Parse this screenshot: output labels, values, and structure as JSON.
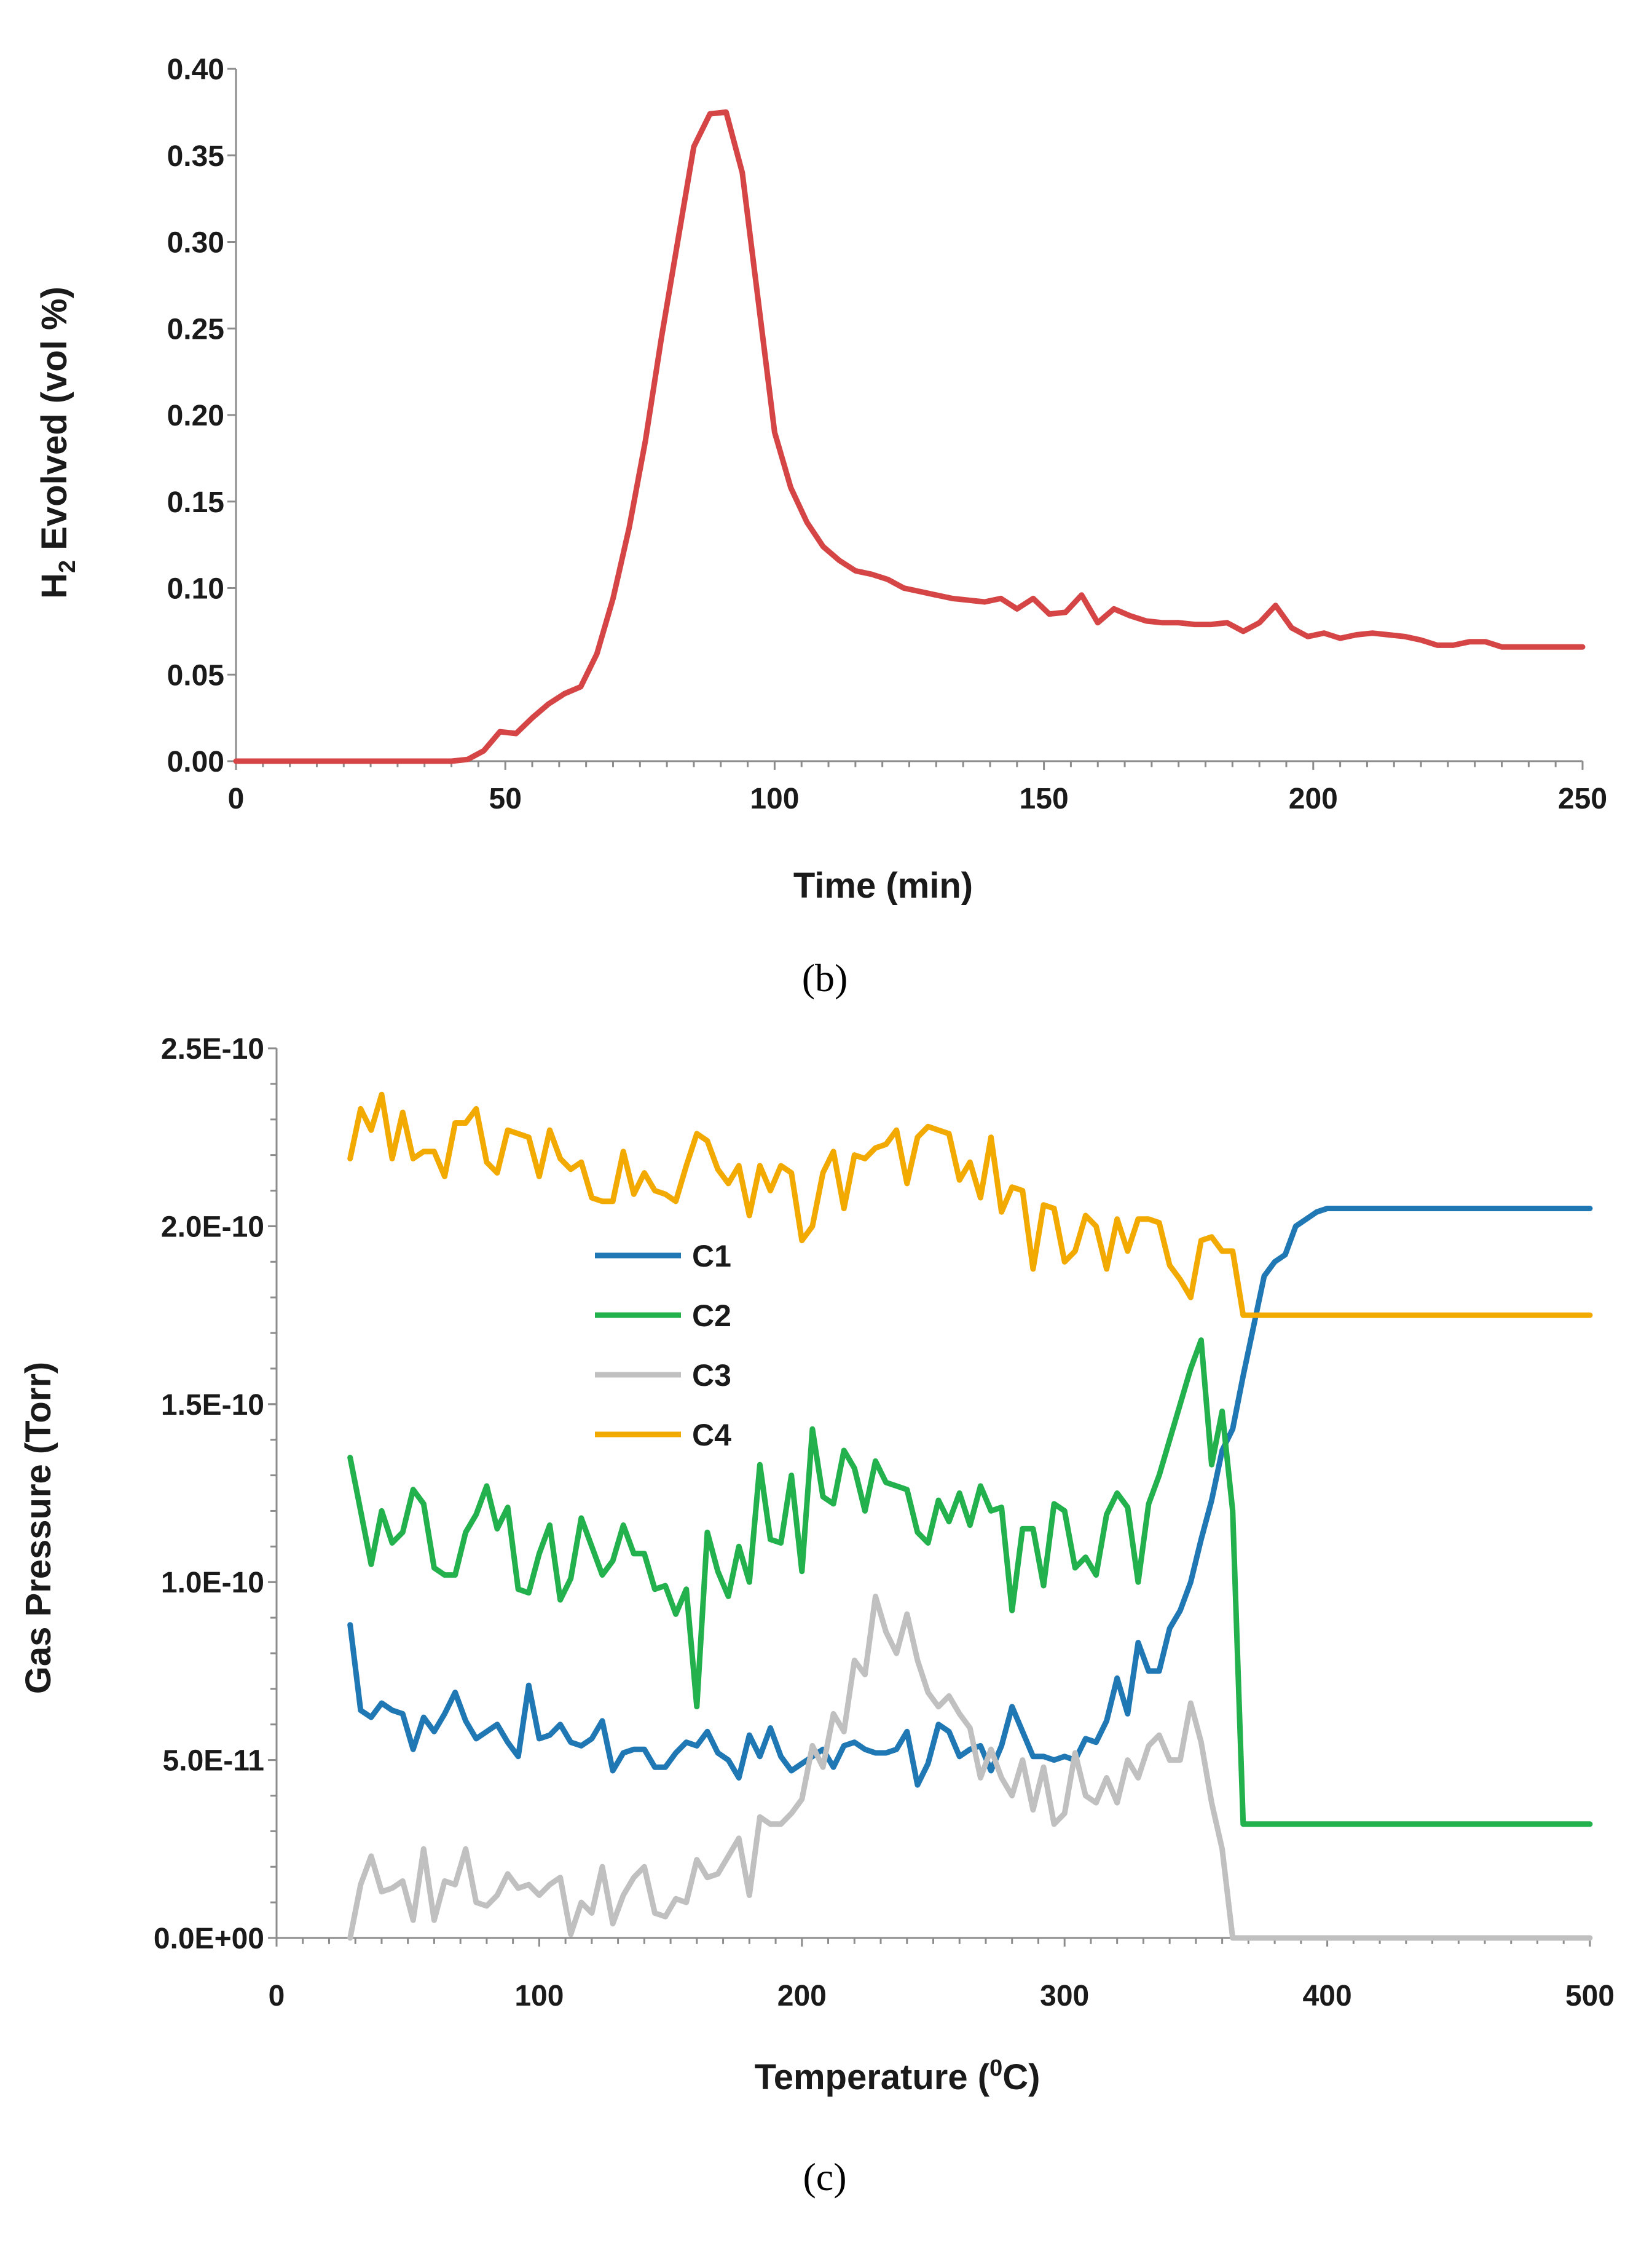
{
  "chart_data": [
    {
      "type": "line",
      "panel_label": "(b)",
      "title": "",
      "xlabel": "Time (min)",
      "ylabel": "H2 Evolved (vol %)",
      "ylabel_main": "H",
      "ylabel_sub": "2",
      "ylabel_rest": " Evolved (vol %)",
      "xlim": [
        0,
        250
      ],
      "ylim": [
        0,
        0.4
      ],
      "x_ticks": [
        "0",
        "50",
        "100",
        "150",
        "200",
        "250"
      ],
      "y_ticks": [
        "0.00",
        "0.05",
        "0.10",
        "0.15",
        "0.20",
        "0.25",
        "0.30",
        "0.35",
        "0.40"
      ],
      "grid": false,
      "legend": "none",
      "series": [
        {
          "name": "H2",
          "color": "#d64545",
          "x": [
            0,
            10,
            20,
            30,
            40,
            43,
            46,
            49,
            52,
            55,
            58,
            61,
            64,
            67,
            70,
            73,
            76,
            79,
            82,
            85,
            88,
            91,
            94,
            97,
            100,
            103,
            106,
            109,
            112,
            115,
            118,
            121,
            124,
            127,
            130,
            133,
            136,
            139,
            142,
            145,
            148,
            151,
            154,
            157,
            160,
            163,
            166,
            169,
            172,
            175,
            178,
            181,
            184,
            187,
            190,
            193,
            196,
            199,
            202,
            205,
            208,
            211,
            214,
            217,
            220,
            223,
            226,
            229,
            232,
            235,
            238,
            241,
            244,
            247,
            250
          ],
          "values": [
            0.0,
            0.0,
            0.0,
            0.0,
            0.0,
            0.001,
            0.006,
            0.017,
            0.016,
            0.025,
            0.033,
            0.039,
            0.043,
            0.062,
            0.094,
            0.135,
            0.185,
            0.245,
            0.3,
            0.355,
            0.374,
            0.375,
            0.34,
            0.265,
            0.19,
            0.158,
            0.138,
            0.124,
            0.116,
            0.11,
            0.108,
            0.105,
            0.1,
            0.098,
            0.096,
            0.094,
            0.093,
            0.092,
            0.094,
            0.088,
            0.094,
            0.085,
            0.086,
            0.096,
            0.08,
            0.088,
            0.084,
            0.081,
            0.08,
            0.08,
            0.079,
            0.079,
            0.08,
            0.075,
            0.08,
            0.09,
            0.077,
            0.072,
            0.074,
            0.071,
            0.073,
            0.074,
            0.073,
            0.072,
            0.07,
            0.067,
            0.067,
            0.069,
            0.069,
            0.066,
            0.066,
            0.066,
            0.066,
            0.066,
            0.066
          ]
        }
      ]
    },
    {
      "type": "line",
      "panel_label": "(c)",
      "title": "",
      "xlabel": "Temperature (0C)",
      "xlabel_main": "Temperature (",
      "xlabel_sup": "0",
      "xlabel_rest": "C)",
      "ylabel": "Gas Pressure (Torr)",
      "xlim": [
        0,
        500
      ],
      "ylim": [
        0,
        2.5e-10
      ],
      "x_ticks": [
        "0",
        "100",
        "200",
        "300",
        "400",
        "500"
      ],
      "y_ticks": [
        "0.0E+00",
        "5.0E-11",
        "1.0E-10",
        "1.5E-10",
        "2.0E-10",
        "2.5E-10"
      ],
      "grid": false,
      "legend": "upper-left-center",
      "x": [
        28,
        32,
        36,
        40,
        44,
        48,
        52,
        56,
        60,
        64,
        68,
        72,
        76,
        80,
        84,
        88,
        92,
        96,
        100,
        104,
        108,
        112,
        116,
        120,
        124,
        128,
        132,
        136,
        140,
        144,
        148,
        152,
        156,
        160,
        164,
        168,
        172,
        176,
        180,
        184,
        188,
        192,
        196,
        200,
        204,
        208,
        212,
        216,
        220,
        224,
        228,
        232,
        236,
        240,
        244,
        248,
        252,
        256,
        260,
        264,
        268,
        272,
        276,
        280,
        284,
        288,
        292,
        296,
        300,
        304,
        308,
        312,
        316,
        320,
        324,
        328,
        332,
        336,
        340,
        344,
        348,
        352,
        356,
        360,
        364,
        368,
        372,
        376,
        380,
        384,
        388,
        392,
        396,
        400,
        404,
        408,
        412,
        416,
        420,
        424,
        428,
        432,
        436,
        440,
        444,
        448,
        452,
        456,
        460,
        464,
        468,
        472,
        476,
        480,
        484,
        488,
        492,
        496,
        500
      ],
      "series": [
        {
          "name": "C1",
          "color": "#1f77b4",
          "values": [
            8.8e-11,
            6.4e-11,
            6.2e-11,
            6.6e-11,
            6.4e-11,
            6.3e-11,
            5.3e-11,
            6.2e-11,
            5.8e-11,
            6.3e-11,
            6.9e-11,
            6.1e-11,
            5.6e-11,
            5.8e-11,
            6e-11,
            5.5e-11,
            5.1e-11,
            7.1e-11,
            5.6e-11,
            5.7e-11,
            6e-11,
            5.5e-11,
            5.4e-11,
            5.6e-11,
            6.1e-11,
            4.7e-11,
            5.2e-11,
            5.3e-11,
            5.3e-11,
            4.8e-11,
            4.8e-11,
            5.2e-11,
            5.5e-11,
            5.4e-11,
            5.8e-11,
            5.2e-11,
            5e-11,
            4.5e-11,
            5.7e-11,
            5.1e-11,
            5.9e-11,
            5.1e-11,
            4.7e-11,
            4.9e-11,
            5.1e-11,
            5.3e-11,
            4.8e-11,
            5.4e-11,
            5.5e-11,
            5.3e-11,
            5.2e-11,
            5.2e-11,
            5.3e-11,
            5.8e-11,
            4.3e-11,
            4.9e-11,
            6e-11,
            5.8e-11,
            5.1e-11,
            5.3e-11,
            5.4e-11,
            4.7e-11,
            5.4e-11,
            6.5e-11,
            5.8e-11,
            5.1e-11,
            5.1e-11,
            5e-11,
            5.1e-11,
            5e-11,
            5.6e-11,
            5.5e-11,
            6.1e-11,
            7.3e-11,
            6.3e-11,
            8.3e-11,
            7.5e-11,
            7.5e-11,
            8.7e-11,
            9.2e-11,
            1e-10,
            1.12e-10,
            1.23e-10,
            1.37e-10,
            1.43e-10,
            1.58e-10,
            1.72e-10,
            1.86e-10,
            1.9e-10,
            1.92e-10,
            2e-10,
            2.02e-10,
            2.04e-10,
            2.05e-10,
            2.05e-10,
            2.05e-10,
            2.05e-10,
            2.05e-10,
            2.05e-10,
            2.05e-10,
            2.05e-10,
            2.05e-10,
            2.05e-10,
            2.05e-10,
            2.05e-10,
            2.05e-10,
            2.05e-10,
            2.05e-10,
            2.05e-10,
            2.05e-10,
            2.05e-10,
            2.05e-10,
            2.05e-10,
            2.05e-10,
            2.05e-10,
            2.05e-10,
            2.05e-10,
            2.05e-10,
            2.05e-10
          ]
        },
        {
          "name": "C2",
          "color": "#22b14c",
          "values": [
            1.35e-10,
            1.2e-10,
            1.05e-10,
            1.2e-10,
            1.11e-10,
            1.14e-10,
            1.26e-10,
            1.22e-10,
            1.04e-10,
            1.02e-10,
            1.02e-10,
            1.14e-10,
            1.19e-10,
            1.27e-10,
            1.15e-10,
            1.21e-10,
            9.8e-11,
            9.7e-11,
            1.08e-10,
            1.16e-10,
            9.5e-11,
            1.01e-10,
            1.18e-10,
            1.1e-10,
            1.02e-10,
            1.06e-10,
            1.16e-10,
            1.08e-10,
            1.08e-10,
            9.8e-11,
            9.9e-11,
            9.1e-11,
            9.8e-11,
            6.5e-11,
            1.14e-10,
            1.03e-10,
            9.6e-11,
            1.1e-10,
            1e-10,
            1.33e-10,
            1.12e-10,
            1.11e-10,
            1.3e-10,
            1.03e-10,
            1.43e-10,
            1.24e-10,
            1.22e-10,
            1.37e-10,
            1.32e-10,
            1.2e-10,
            1.34e-10,
            1.28e-10,
            1.27e-10,
            1.26e-10,
            1.14e-10,
            1.11e-10,
            1.23e-10,
            1.17e-10,
            1.25e-10,
            1.16e-10,
            1.27e-10,
            1.2e-10,
            1.21e-10,
            9.2e-11,
            1.15e-10,
            1.15e-10,
            9.9e-11,
            1.22e-10,
            1.2e-10,
            1.04e-10,
            1.07e-10,
            1.02e-10,
            1.19e-10,
            1.25e-10,
            1.21e-10,
            1e-10,
            1.22e-10,
            1.3e-10,
            1.4e-10,
            1.5e-10,
            1.6e-10,
            1.68e-10,
            1.33e-10,
            1.48e-10,
            1.2e-10,
            3.2e-11,
            3.2e-11,
            3.2e-11,
            3.2e-11,
            3.2e-11,
            3.2e-11,
            3.2e-11,
            3.2e-11,
            3.2e-11,
            3.2e-11,
            3.2e-11,
            3.2e-11,
            3.2e-11,
            3.2e-11,
            3.2e-11,
            3.2e-11,
            3.2e-11,
            3.2e-11,
            3.2e-11,
            3.2e-11,
            3.2e-11,
            3.2e-11,
            3.2e-11,
            3.2e-11,
            3.2e-11,
            3.2e-11,
            3.2e-11,
            3.2e-11,
            3.2e-11,
            3.2e-11,
            3.2e-11,
            3.2e-11,
            3.2e-11,
            3.2e-11
          ]
        },
        {
          "name": "C3",
          "color": "#c0c0c0",
          "values": [
            0,
            1.5e-11,
            2.3e-11,
            1.3e-11,
            1.4e-11,
            1.6e-11,
            5e-12,
            2.5e-11,
            5e-12,
            1.6e-11,
            1.5e-11,
            2.5e-11,
            1e-11,
            9e-12,
            1.2e-11,
            1.8e-11,
            1.4e-11,
            1.5e-11,
            1.2e-11,
            1.5e-11,
            1.7e-11,
            1e-12,
            1e-11,
            7e-12,
            2e-11,
            4e-12,
            1.2e-11,
            1.7e-11,
            2e-11,
            7e-12,
            6e-12,
            1.1e-11,
            1e-11,
            2.2e-11,
            1.7e-11,
            1.8e-11,
            2.3e-11,
            2.8e-11,
            1.2e-11,
            3.4e-11,
            3.2e-11,
            3.2e-11,
            3.5e-11,
            3.9e-11,
            5.4e-11,
            4.8e-11,
            6.3e-11,
            5.8e-11,
            7.8e-11,
            7.4e-11,
            9.6e-11,
            8.6e-11,
            8e-11,
            9.1e-11,
            7.8e-11,
            6.9e-11,
            6.5e-11,
            6.8e-11,
            6.3e-11,
            5.9e-11,
            4.5e-11,
            5.3e-11,
            4.5e-11,
            4e-11,
            5e-11,
            3.6e-11,
            4.8e-11,
            3.2e-11,
            3.5e-11,
            5.2e-11,
            4e-11,
            3.8e-11,
            4.5e-11,
            3.8e-11,
            5e-11,
            4.5e-11,
            5.4e-11,
            5.7e-11,
            5e-11,
            5e-11,
            6.6e-11,
            5.5e-11,
            3.8e-11,
            2.5e-11,
            0,
            0,
            0,
            0,
            0,
            0,
            0,
            0,
            0,
            0,
            0,
            0,
            0,
            0,
            0,
            0,
            0,
            0,
            0,
            0,
            0,
            0,
            0,
            0,
            0,
            0,
            0,
            0,
            0,
            0,
            0,
            0,
            0,
            0,
            0
          ]
        },
        {
          "name": "C4",
          "color": "#f2a900",
          "values": [
            2.19e-10,
            2.33e-10,
            2.27e-10,
            2.37e-10,
            2.19e-10,
            2.32e-10,
            2.19e-10,
            2.21e-10,
            2.21e-10,
            2.14e-10,
            2.29e-10,
            2.29e-10,
            2.33e-10,
            2.18e-10,
            2.15e-10,
            2.27e-10,
            2.26e-10,
            2.25e-10,
            2.14e-10,
            2.27e-10,
            2.19e-10,
            2.16e-10,
            2.18e-10,
            2.08e-10,
            2.07e-10,
            2.07e-10,
            2.21e-10,
            2.09e-10,
            2.15e-10,
            2.1e-10,
            2.09e-10,
            2.07e-10,
            2.17e-10,
            2.26e-10,
            2.24e-10,
            2.16e-10,
            2.12e-10,
            2.17e-10,
            2.03e-10,
            2.17e-10,
            2.1e-10,
            2.17e-10,
            2.15e-10,
            1.96e-10,
            2e-10,
            2.15e-10,
            2.21e-10,
            2.05e-10,
            2.2e-10,
            2.19e-10,
            2.22e-10,
            2.23e-10,
            2.27e-10,
            2.12e-10,
            2.25e-10,
            2.28e-10,
            2.27e-10,
            2.26e-10,
            2.13e-10,
            2.18e-10,
            2.08e-10,
            2.25e-10,
            2.04e-10,
            2.11e-10,
            2.1e-10,
            1.88e-10,
            2.06e-10,
            2.05e-10,
            1.9e-10,
            1.93e-10,
            2.03e-10,
            2e-10,
            1.88e-10,
            2.02e-10,
            1.93e-10,
            2.02e-10,
            2.02e-10,
            2.01e-10,
            1.89e-10,
            1.85e-10,
            1.8e-10,
            1.96e-10,
            1.97e-10,
            1.93e-10,
            1.93e-10,
            1.75e-10,
            1.75e-10,
            1.75e-10,
            1.75e-10,
            1.75e-10,
            1.75e-10,
            1.75e-10,
            1.75e-10,
            1.75e-10,
            1.75e-10,
            1.75e-10,
            1.75e-10,
            1.75e-10,
            1.75e-10,
            1.75e-10,
            1.75e-10,
            1.75e-10,
            1.75e-10,
            1.75e-10,
            1.75e-10,
            1.75e-10,
            1.75e-10,
            1.75e-10,
            1.75e-10,
            1.75e-10,
            1.75e-10,
            1.75e-10,
            1.75e-10,
            1.75e-10,
            1.75e-10,
            1.75e-10,
            1.75e-10,
            1.75e-10,
            1.75e-10
          ]
        }
      ]
    }
  ]
}
